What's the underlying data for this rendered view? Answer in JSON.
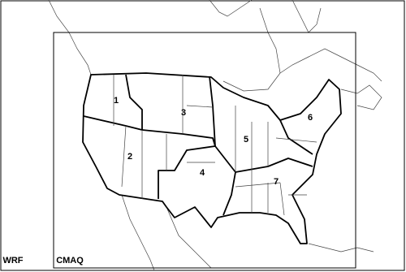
{
  "domains": {
    "outer": "WRF",
    "inner": "CMAQ"
  },
  "regions": [
    {
      "label": "1"
    },
    {
      "label": "2"
    },
    {
      "label": "3"
    },
    {
      "label": "4"
    },
    {
      "label": "5"
    },
    {
      "label": "6"
    },
    {
      "label": "7"
    }
  ]
}
